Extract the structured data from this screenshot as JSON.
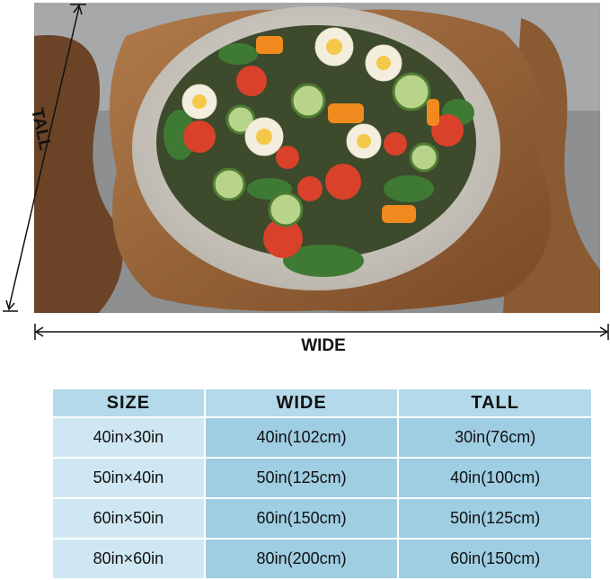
{
  "diagram": {
    "tall_label": "TALL",
    "wide_label": "WIDE"
  },
  "table": {
    "header": [
      "SIZE",
      "WIDE",
      "TALL"
    ],
    "rows": [
      [
        "40in×30in",
        "40in(102cm)",
        "30in(76cm)"
      ],
      [
        "50in×40in",
        "50in(125cm)",
        "40in(100cm)"
      ],
      [
        "60in×50in",
        "60in(150cm)",
        "50in(125cm)"
      ],
      [
        "80in×60in",
        "80in(200cm)",
        "60in(150cm)"
      ]
    ]
  }
}
